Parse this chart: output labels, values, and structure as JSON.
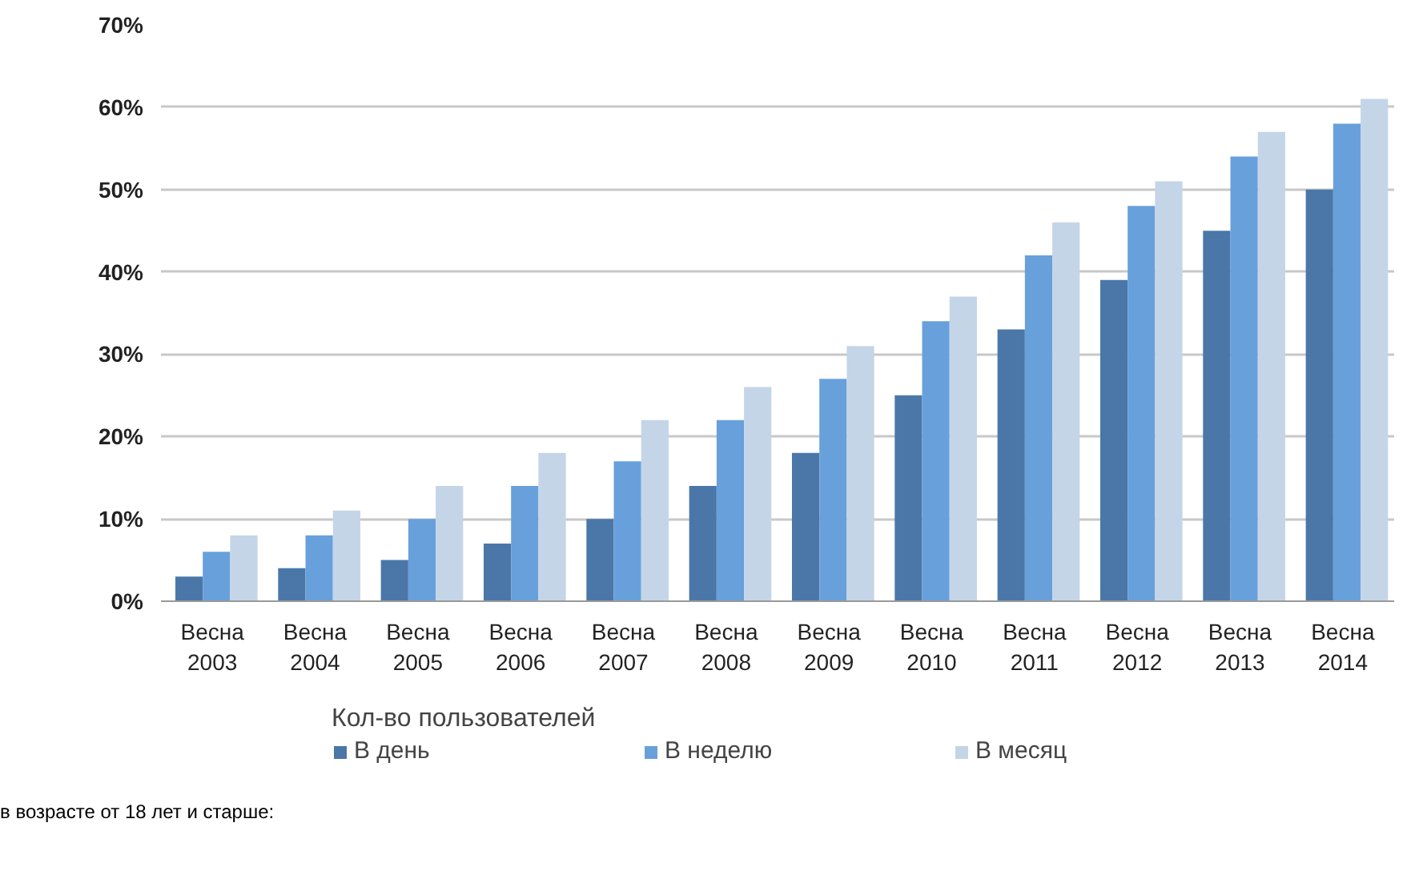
{
  "chart_data": {
    "type": "bar",
    "categories": [
      "Весна 2003",
      "Весна 2004",
      "Весна 2005",
      "Весна 2006",
      "Весна 2007",
      "Весна 2008",
      "Весна 2009",
      "Весна 2010",
      "Весна 2011",
      "Весна 2012",
      "Весна 2013",
      "Весна 2014"
    ],
    "series": [
      {
        "name": "В день",
        "color": "#4a77a8",
        "values": [
          3,
          4,
          5,
          7,
          10,
          14,
          18,
          25,
          33,
          39,
          45,
          50
        ]
      },
      {
        "name": "В неделю",
        "color": "#68a0db",
        "values": [
          6,
          8,
          10,
          14,
          17,
          22,
          27,
          34,
          42,
          48,
          54,
          58
        ]
      },
      {
        "name": "В месяц",
        "color": "#c5d5e8",
        "values": [
          8,
          11,
          14,
          18,
          22,
          26,
          31,
          37,
          46,
          51,
          57,
          61
        ]
      }
    ],
    "ylim": [
      0,
      70
    ],
    "yticks": [
      {
        "value": 0,
        "label": "0%"
      },
      {
        "value": 10,
        "label": "10%"
      },
      {
        "value": 20,
        "label": "20%"
      },
      {
        "value": 30,
        "label": "30%"
      },
      {
        "value": 40,
        "label": "40%"
      },
      {
        "value": 50,
        "label": "50%"
      },
      {
        "value": 60,
        "label": "60%"
      },
      {
        "value": 70,
        "label": "70%"
      }
    ],
    "grid": "y",
    "legend": "bottom",
    "legend_title": "Кол-во пользователей",
    "annotations": [
      "в возрасте от 18 лет и старше:"
    ]
  }
}
